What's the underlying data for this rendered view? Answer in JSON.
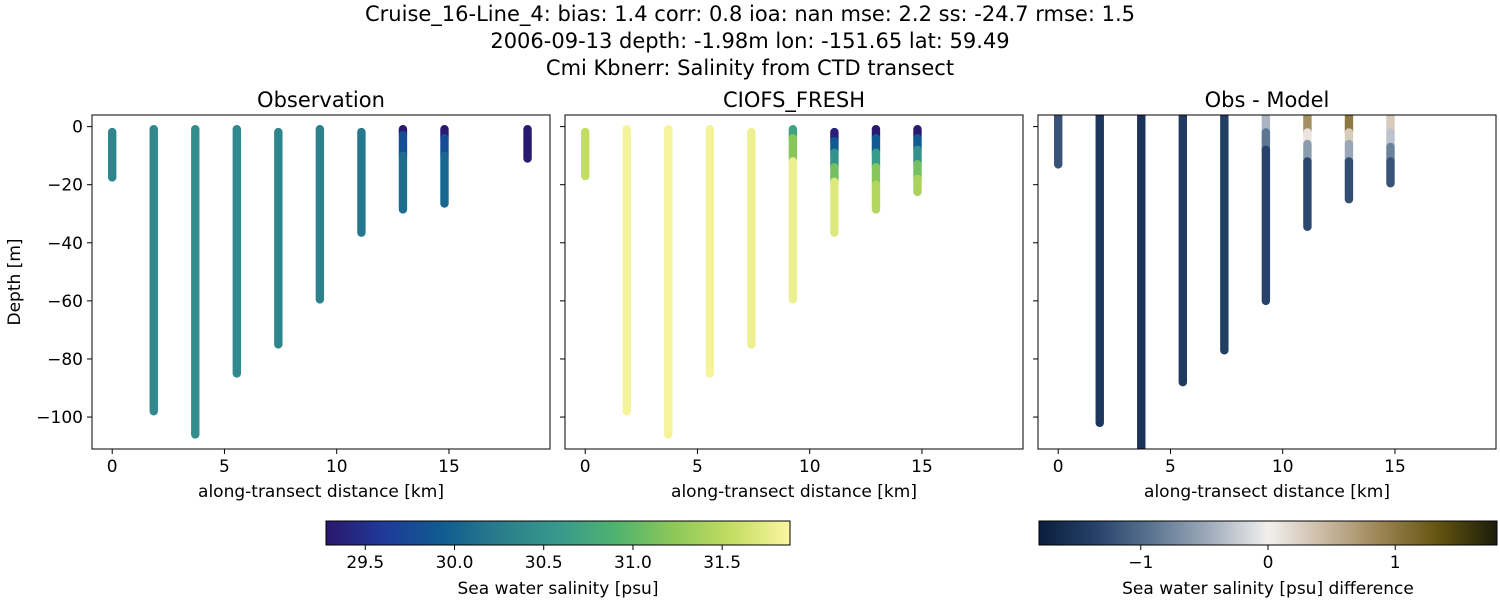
{
  "figure": {
    "title_lines": [
      "Cruise_16-Line_4: bias: 1.4  corr: 0.8  ioa: nan  mse: 2.2  ss: -24.7  rmse: 1.5",
      "2006-09-13 depth: -1.98m lon: -151.65 lat: 59.49",
      "Cmi Kbnerr: Salinity from CTD transect"
    ]
  },
  "chart_data": [
    {
      "type": "scatter",
      "title": "Observation",
      "xlabel": "along-transect distance [km]",
      "ylabel": "Depth [m]",
      "xlim": [
        -0.9,
        19.5
      ],
      "ylim": [
        -111,
        4
      ],
      "xticks": [
        0,
        5,
        10,
        15
      ],
      "yticks": [
        0,
        -20,
        -40,
        -60,
        -80,
        -100
      ],
      "ytick_labels": [
        "0",
        "−20",
        "−40",
        "−60",
        "−80",
        "−100"
      ],
      "grid": false,
      "colormap": "haline",
      "casts": [
        {
          "x": 0.0,
          "top": -1.9,
          "bottom": -17.5,
          "segments": [
            {
              "from": -1.9,
              "to": -17.5,
              "value": 30.35
            }
          ]
        },
        {
          "x": 1.85,
          "top": -0.9,
          "bottom": -98.0,
          "segments": [
            {
              "from": -0.9,
              "to": -98.0,
              "value": 30.4
            }
          ]
        },
        {
          "x": 3.7,
          "top": -0.9,
          "bottom": -106.0,
          "segments": [
            {
              "from": -0.9,
              "to": -106.0,
              "value": 30.45
            }
          ]
        },
        {
          "x": 5.55,
          "top": -0.9,
          "bottom": -85.0,
          "segments": [
            {
              "from": -0.9,
              "to": -85.0,
              "value": 30.4
            }
          ]
        },
        {
          "x": 7.4,
          "top": -1.9,
          "bottom": -75.0,
          "segments": [
            {
              "from": -1.9,
              "to": -75.0,
              "value": 30.35
            }
          ]
        },
        {
          "x": 9.25,
          "top": -0.9,
          "bottom": -59.5,
          "segments": [
            {
              "from": -0.9,
              "to": -59.5,
              "value": 30.3
            }
          ]
        },
        {
          "x": 11.1,
          "top": -1.9,
          "bottom": -36.5,
          "segments": [
            {
              "from": -1.9,
              "to": -36.5,
              "value": 30.2
            }
          ]
        },
        {
          "x": 12.95,
          "top": -0.9,
          "bottom": -28.5,
          "segments": [
            {
              "from": -0.9,
              "to": -3.0,
              "value": 29.3
            },
            {
              "from": -3.0,
              "to": -10.0,
              "value": 29.8
            },
            {
              "from": -10.0,
              "to": -28.5,
              "value": 30.1
            }
          ]
        },
        {
          "x": 14.8,
          "top": -0.9,
          "bottom": -26.5,
          "segments": [
            {
              "from": -0.9,
              "to": -4.0,
              "value": 29.3
            },
            {
              "from": -4.0,
              "to": -10.0,
              "value": 29.8
            },
            {
              "from": -10.0,
              "to": -26.5,
              "value": 30.05
            }
          ]
        },
        {
          "x": 18.5,
          "top": -0.9,
          "bottom": -11.0,
          "segments": [
            {
              "from": -0.9,
              "to": -11.0,
              "value": 29.3
            }
          ]
        }
      ]
    },
    {
      "type": "scatter",
      "title": "CIOFS_FRESH",
      "xlabel": "along-transect distance [km]",
      "ylabel": "",
      "xlim": [
        -0.9,
        19.5
      ],
      "ylim": [
        -111,
        4
      ],
      "xticks": [
        0,
        5,
        10,
        15
      ],
      "yticks": [
        0,
        -20,
        -40,
        -60,
        -80,
        -100
      ],
      "ytick_labels": [],
      "grid": false,
      "colormap": "haline",
      "casts": [
        {
          "x": 0.0,
          "top": -1.9,
          "bottom": -17.0,
          "segments": [
            {
              "from": -1.9,
              "to": -17.0,
              "value": 31.55
            }
          ]
        },
        {
          "x": 1.85,
          "top": -0.9,
          "bottom": -98.0,
          "segments": [
            {
              "from": -0.9,
              "to": -98.0,
              "value": 31.85
            }
          ]
        },
        {
          "x": 3.7,
          "top": -0.9,
          "bottom": -106.0,
          "segments": [
            {
              "from": -0.9,
              "to": -106.0,
              "value": 31.85
            }
          ]
        },
        {
          "x": 5.55,
          "top": -0.9,
          "bottom": -85.0,
          "segments": [
            {
              "from": -0.9,
              "to": -85.0,
              "value": 31.85
            }
          ]
        },
        {
          "x": 7.4,
          "top": -1.9,
          "bottom": -75.0,
          "segments": [
            {
              "from": -1.9,
              "to": -75.0,
              "value": 31.8
            }
          ]
        },
        {
          "x": 9.25,
          "top": -0.9,
          "bottom": -59.5,
          "segments": [
            {
              "from": -0.9,
              "to": -4.0,
              "value": 30.7
            },
            {
              "from": -4.0,
              "to": -12.0,
              "value": 31.2
            },
            {
              "from": -12.0,
              "to": -59.5,
              "value": 31.8
            }
          ]
        },
        {
          "x": 11.1,
          "top": -1.9,
          "bottom": -36.5,
          "segments": [
            {
              "from": -1.9,
              "to": -5.0,
              "value": 29.35
            },
            {
              "from": -5.0,
              "to": -9.0,
              "value": 29.9
            },
            {
              "from": -9.0,
              "to": -14.0,
              "value": 30.5
            },
            {
              "from": -14.0,
              "to": -19.0,
              "value": 31.1
            },
            {
              "from": -19.0,
              "to": -36.5,
              "value": 31.7
            }
          ]
        },
        {
          "x": 12.95,
          "top": -0.9,
          "bottom": -28.5,
          "segments": [
            {
              "from": -0.9,
              "to": -4.0,
              "value": 29.3
            },
            {
              "from": -4.0,
              "to": -9.0,
              "value": 29.9
            },
            {
              "from": -9.0,
              "to": -14.0,
              "value": 30.6
            },
            {
              "from": -14.0,
              "to": -20.0,
              "value": 31.2
            },
            {
              "from": -20.0,
              "to": -28.5,
              "value": 31.45
            }
          ]
        },
        {
          "x": 14.8,
          "top": -0.9,
          "bottom": -22.5,
          "segments": [
            {
              "from": -0.9,
              "to": -4.0,
              "value": 29.3
            },
            {
              "from": -4.0,
              "to": -8.0,
              "value": 29.9
            },
            {
              "from": -8.0,
              "to": -13.0,
              "value": 30.5
            },
            {
              "from": -13.0,
              "to": -18.0,
              "value": 31.1
            },
            {
              "from": -18.0,
              "to": -22.5,
              "value": 31.4
            }
          ]
        }
      ]
    },
    {
      "type": "scatter",
      "title": "Obs - Model",
      "xlabel": "along-transect distance [km]",
      "ylabel": "",
      "xlim": [
        -0.9,
        19.5
      ],
      "ylim": [
        -111,
        4
      ],
      "xticks": [
        0,
        5,
        10,
        15
      ],
      "yticks": [
        0,
        -20,
        -40,
        -60,
        -80,
        -100
      ],
      "ytick_labels": [],
      "grid": false,
      "colormap": "diff",
      "casts": [
        {
          "x": 0.0,
          "top": 4.0,
          "bottom": -13.0,
          "segments": [
            {
              "from": 4.0,
              "to": -13.0,
              "value": -1.2
            }
          ]
        },
        {
          "x": 1.85,
          "top": 4.0,
          "bottom": -102.0,
          "segments": [
            {
              "from": 4.0,
              "to": -102.0,
              "value": -1.5
            }
          ]
        },
        {
          "x": 3.7,
          "top": 4.0,
          "bottom": -111.0,
          "segments": [
            {
              "from": 4.0,
              "to": -111.0,
              "value": -1.55
            }
          ]
        },
        {
          "x": 5.55,
          "top": 4.0,
          "bottom": -88.0,
          "segments": [
            {
              "from": 4.0,
              "to": -88.0,
              "value": -1.45
            }
          ]
        },
        {
          "x": 7.4,
          "top": 4.0,
          "bottom": -77.0,
          "segments": [
            {
              "from": 4.0,
              "to": -77.0,
              "value": -1.4
            }
          ]
        },
        {
          "x": 9.25,
          "top": 4.0,
          "bottom": -60.0,
          "segments": [
            {
              "from": 4.0,
              "to": -2.0,
              "value": -0.4
            },
            {
              "from": -2.0,
              "to": -8.0,
              "value": -0.9
            },
            {
              "from": -8.0,
              "to": -60.0,
              "value": -1.35
            }
          ]
        },
        {
          "x": 11.1,
          "top": 4.0,
          "bottom": -34.5,
          "segments": [
            {
              "from": 4.0,
              "to": -2.0,
              "value": 0.8
            },
            {
              "from": -2.0,
              "to": -6.0,
              "value": 0.1
            },
            {
              "from": -6.0,
              "to": -12.0,
              "value": -0.6
            },
            {
              "from": -12.0,
              "to": -34.5,
              "value": -1.3
            }
          ]
        },
        {
          "x": 12.95,
          "top": 4.0,
          "bottom": -25.0,
          "segments": [
            {
              "from": 4.0,
              "to": -2.0,
              "value": 1.0
            },
            {
              "from": -2.0,
              "to": -6.0,
              "value": 0.3
            },
            {
              "from": -6.0,
              "to": -12.0,
              "value": -0.5
            },
            {
              "from": -12.0,
              "to": -25.0,
              "value": -1.25
            }
          ]
        },
        {
          "x": 14.8,
          "top": 4.0,
          "bottom": -19.5,
          "segments": [
            {
              "from": 4.0,
              "to": -2.0,
              "value": 0.3
            },
            {
              "from": -2.0,
              "to": -7.0,
              "value": -0.3
            },
            {
              "from": -7.0,
              "to": -12.0,
              "value": -0.8
            },
            {
              "from": -12.0,
              "to": -19.5,
              "value": -1.2
            }
          ]
        }
      ]
    }
  ],
  "colorbars": [
    {
      "label": "Sea water salinity [psu]",
      "range": [
        29.28,
        31.88
      ],
      "ticks": [
        29.5,
        30.0,
        30.5,
        31.0,
        31.5
      ],
      "tick_labels": [
        "29.5",
        "30.0",
        "30.5",
        "31.0",
        "31.5"
      ],
      "colors": [
        "#2a186c",
        "#1f3a9a",
        "#0f5c90",
        "#2a7d8c",
        "#37998c",
        "#4fb36f",
        "#8dc858",
        "#c4dd63",
        "#fbf6a0"
      ]
    },
    {
      "label": "Sea water salinity [psu] difference",
      "range": [
        -1.8,
        1.8
      ],
      "ticks": [
        -1,
        0,
        1
      ],
      "tick_labels": [
        "−1",
        "0",
        "1"
      ],
      "colors": [
        "#0a1e3c",
        "#26426a",
        "#5d7692",
        "#a1adbc",
        "#f2f0ee",
        "#c9b8a1",
        "#9a8350",
        "#62520f",
        "#1a1c0b"
      ]
    }
  ]
}
